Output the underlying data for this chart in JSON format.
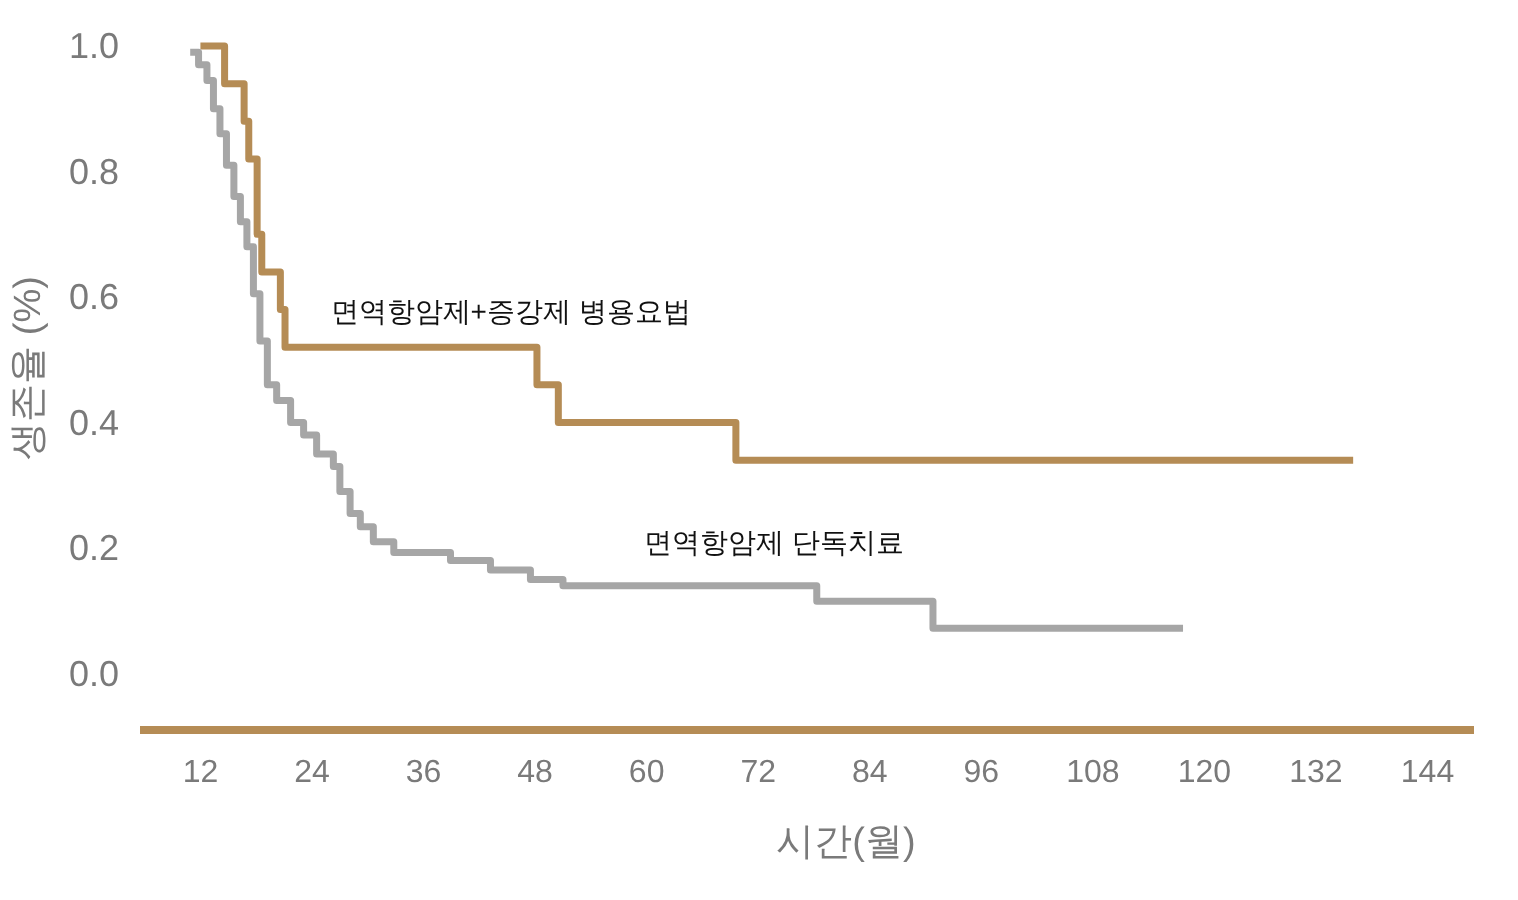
{
  "chart_data": {
    "type": "step",
    "xlabel": "시간(월)",
    "ylabel": "생존율 (%)",
    "xlim": [
      5.5,
      149
    ],
    "ylim": [
      -0.09,
      1.0
    ],
    "xticks": [
      12,
      24,
      36,
      48,
      60,
      72,
      84,
      96,
      108,
      120,
      132,
      144
    ],
    "yticks": [
      {
        "value": 0,
        "label": "0.0"
      },
      {
        "value": 0.2,
        "label": "0.2"
      },
      {
        "value": 0.4,
        "label": "0.4"
      },
      {
        "value": 0.6,
        "label": "0.6"
      },
      {
        "value": 0.8,
        "label": "0.8"
      },
      {
        "value": 1,
        "label": "1.0"
      }
    ],
    "grid": false,
    "series": [
      {
        "name": "면역항암제+증강제 병용요법",
        "color": "#b58c55",
        "x": [
          12.0,
          14.6,
          16.7,
          17.2,
          18.1,
          18.6,
          20.6,
          21.1,
          48.2,
          50.5,
          69.6,
          136.0
        ],
        "values": [
          1.0,
          0.94,
          0.88,
          0.82,
          0.7,
          0.64,
          0.58,
          0.52,
          0.46,
          0.4,
          0.34,
          0.34
        ]
      },
      {
        "name": "면역항암제 단독치료",
        "color": "#a6a6a6",
        "x": [
          10.9,
          11.8,
          12.7,
          13.4,
          14.1,
          14.8,
          15.6,
          16.3,
          17.0,
          17.7,
          18.4,
          19.2,
          20.2,
          21.7,
          23.1,
          24.5,
          26.3,
          27.0,
          28.1,
          29.2,
          30.6,
          32.8,
          38.9,
          43.2,
          47.5,
          51.0,
          78.3,
          90.8,
          117.7
        ],
        "values": [
          0.99,
          0.97,
          0.945,
          0.9,
          0.86,
          0.81,
          0.76,
          0.72,
          0.68,
          0.605,
          0.53,
          0.46,
          0.435,
          0.4,
          0.38,
          0.35,
          0.33,
          0.29,
          0.255,
          0.234,
          0.21,
          0.193,
          0.18,
          0.165,
          0.15,
          0.14,
          0.115,
          0.072,
          0.072
        ]
      }
    ]
  }
}
